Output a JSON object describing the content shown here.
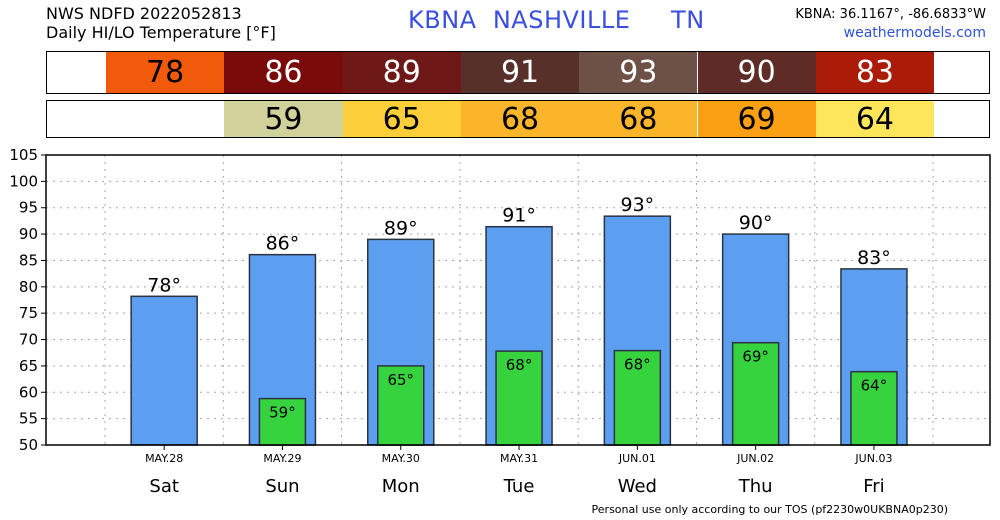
{
  "header": {
    "line1": "NWS NDFD 2022052813",
    "line2": "Daily HI/LO Temperature [°F]",
    "station": "KBNA  NASHVILLE     TN",
    "coords": "KBNA: 36.1167°, -86.6833°W",
    "site": "weathermodels.com"
  },
  "strips": {
    "hi": [
      {
        "value": "78",
        "color": "#f05a0a",
        "text_color": "#000000"
      },
      {
        "value": "86",
        "color": "#7a0b0b",
        "text_color": "#ffffff"
      },
      {
        "value": "89",
        "color": "#6e1818",
        "text_color": "#ffffff"
      },
      {
        "value": "91",
        "color": "#57302a",
        "text_color": "#ffffff"
      },
      {
        "value": "93",
        "color": "#6d5147",
        "text_color": "#ffffff"
      },
      {
        "value": "90",
        "color": "#5f2b26",
        "text_color": "#ffffff"
      },
      {
        "value": "83",
        "color": "#aa1b08",
        "text_color": "#ffffff"
      }
    ],
    "lo": [
      {
        "value": "",
        "color": "#ffffff",
        "text_color": "#000000"
      },
      {
        "value": "59",
        "color": "#d1d19b",
        "text_color": "#000000"
      },
      {
        "value": "65",
        "color": "#fccf3a",
        "text_color": "#000000"
      },
      {
        "value": "68",
        "color": "#fbb52b",
        "text_color": "#000000"
      },
      {
        "value": "68",
        "color": "#fbb52b",
        "text_color": "#000000"
      },
      {
        "value": "69",
        "color": "#faa012",
        "text_color": "#000000"
      },
      {
        "value": "64",
        "color": "#fde65a",
        "text_color": "#000000"
      }
    ]
  },
  "chart_data": {
    "type": "bar",
    "categories": [
      "Sat",
      "Sun",
      "Mon",
      "Tue",
      "Wed",
      "Thu",
      "Fri"
    ],
    "dates": [
      "MAY.28",
      "MAY.29",
      "MAY.30",
      "MAY.31",
      "JUN.01",
      "JUN.02",
      "JUN.03"
    ],
    "series": [
      {
        "values": [
          78.2,
          86.1,
          89.0,
          91.4,
          93.4,
          90.0,
          83.4
        ],
        "labels": [
          "78°",
          "86°",
          "89°",
          "91°",
          "93°",
          "90°",
          "83°"
        ],
        "color": "#5c9ff0"
      },
      {
        "values": [
          null,
          58.8,
          65.0,
          67.8,
          67.9,
          69.4,
          63.9
        ],
        "labels": [
          "",
          "59°",
          "65°",
          "68°",
          "68°",
          "69°",
          "64°"
        ],
        "color": "#36d33e"
      }
    ],
    "ylim": [
      50,
      105
    ],
    "yticks": [
      "50",
      "55",
      "60",
      "65",
      "70",
      "75",
      "80",
      "85",
      "90",
      "95",
      "100",
      "105"
    ],
    "grid": true
  },
  "footer": "Personal use only according to our TOS (pf2230w0UKBNA0p230)"
}
